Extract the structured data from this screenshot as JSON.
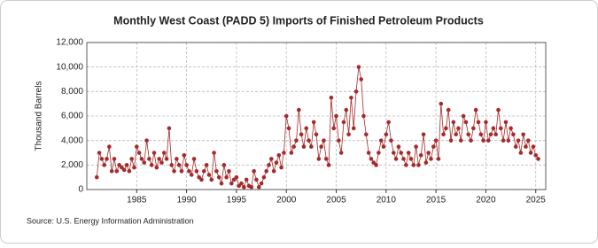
{
  "chart_data": {
    "type": "line",
    "title": "Monthly West Coast (PADD 5) Imports of Finished Petroleum Products",
    "y_label": "Thousand Barrels",
    "source": "Source: U.S. Energy Information Administration",
    "xlim": [
      1980,
      2026
    ],
    "xticks": [
      1985,
      1990,
      1995,
      2000,
      2005,
      2010,
      2015,
      2020,
      2025
    ],
    "ylim": [
      0,
      12000
    ],
    "yticks": [
      0,
      {
        "value": 2000,
        "label": "2,000"
      },
      {
        "value": 4000,
        "label": "4,000"
      },
      {
        "value": 6000,
        "label": "6,000"
      },
      {
        "value": 8000,
        "label": "8,000"
      },
      {
        "value": 10000,
        "label": "10,000"
      },
      {
        "value": 12000,
        "label": "12,000"
      }
    ],
    "grid": true,
    "series": [
      {
        "color": "#a52a2a",
        "x": [
          1981,
          1981.25,
          1981.5,
          1981.75,
          1982,
          1982.25,
          1982.5,
          1982.75,
          1983,
          1983.25,
          1983.5,
          1983.75,
          1984,
          1984.25,
          1984.5,
          1984.75,
          1985,
          1985.25,
          1985.5,
          1985.75,
          1986,
          1986.25,
          1986.5,
          1986.75,
          1987,
          1987.25,
          1987.5,
          1987.75,
          1988,
          1988.25,
          1988.5,
          1988.75,
          1989,
          1989.25,
          1989.5,
          1989.75,
          1990,
          1990.25,
          1990.5,
          1990.75,
          1991,
          1991.25,
          1991.5,
          1991.75,
          1992,
          1992.25,
          1992.5,
          1992.75,
          1993,
          1993.25,
          1993.5,
          1993.75,
          1994,
          1994.25,
          1994.5,
          1994.75,
          1995,
          1995.25,
          1995.5,
          1995.75,
          1996,
          1996.25,
          1996.5,
          1996.75,
          1997,
          1997.25,
          1997.5,
          1997.75,
          1998,
          1998.25,
          1998.5,
          1998.75,
          1999,
          1999.25,
          1999.5,
          1999.75,
          2000,
          2000.25,
          2000.5,
          2000.75,
          2001,
          2001.25,
          2001.5,
          2001.75,
          2002,
          2002.25,
          2002.5,
          2002.75,
          2003,
          2003.25,
          2003.5,
          2003.75,
          2004,
          2004.25,
          2004.5,
          2004.75,
          2005,
          2005.25,
          2005.5,
          2005.75,
          2006,
          2006.25,
          2006.5,
          2006.75,
          2007,
          2007.25,
          2007.5,
          2007.75,
          2008,
          2008.25,
          2008.5,
          2008.75,
          2009,
          2009.25,
          2009.5,
          2009.75,
          2010,
          2010.25,
          2010.5,
          2010.75,
          2011,
          2011.25,
          2011.5,
          2011.75,
          2012,
          2012.25,
          2012.5,
          2012.75,
          2013,
          2013.25,
          2013.5,
          2013.75,
          2014,
          2014.25,
          2014.5,
          2014.75,
          2015,
          2015.25,
          2015.5,
          2015.75,
          2016,
          2016.25,
          2016.5,
          2016.75,
          2017,
          2017.25,
          2017.5,
          2017.75,
          2018,
          2018.25,
          2018.5,
          2018.75,
          2019,
          2019.25,
          2019.5,
          2019.75,
          2020,
          2020.25,
          2020.5,
          2020.75,
          2021,
          2021.25,
          2021.5,
          2021.75,
          2022,
          2022.25,
          2022.5,
          2022.75,
          2023,
          2023.25,
          2023.5,
          2023.75,
          2024,
          2024.25,
          2024.5,
          2024.75,
          2025,
          2025.25
        ],
        "values": [
          1000,
          3000,
          2500,
          2000,
          2500,
          3500,
          1500,
          2500,
          1500,
          2000,
          1800,
          1600,
          2000,
          1500,
          2500,
          1800,
          3500,
          3000,
          2500,
          2200,
          4000,
          2500,
          2000,
          3000,
          1800,
          2500,
          2200,
          3000,
          2500,
          5000,
          2000,
          1500,
          2500,
          2000,
          1500,
          2800,
          2000,
          1500,
          1200,
          2500,
          1500,
          1000,
          800,
          1500,
          2000,
          1200,
          800,
          3000,
          1500,
          1000,
          500,
          2000,
          1000,
          1500,
          500,
          800,
          1000,
          300,
          500,
          200,
          800,
          300,
          200,
          1500,
          800,
          200,
          500,
          1000,
          1500,
          2000,
          2500,
          1500,
          2200,
          2800,
          1800,
          3000,
          6000,
          5000,
          3000,
          3500,
          4000,
          6500,
          4500,
          3500,
          5000,
          4000,
          3500,
          5500,
          4500,
          2500,
          3500,
          4000,
          2500,
          2000,
          7500,
          5000,
          6000,
          4000,
          3000,
          5500,
          6500,
          4500,
          7500,
          5000,
          8000,
          10000,
          9000,
          6000,
          4500,
          3000,
          2500,
          2200,
          2000,
          3000,
          4000,
          3500,
          4500,
          5500,
          4000,
          3000,
          2500,
          3500,
          3000,
          2500,
          2000,
          3000,
          2500,
          2000,
          3500,
          2000,
          2800,
          4500,
          2200,
          3000,
          2500,
          3500,
          4000,
          2500,
          7000,
          4500,
          5000,
          6500,
          4000,
          5500,
          4500,
          5000,
          4000,
          6000,
          5500,
          4500,
          4000,
          5000,
          6500,
          5500,
          4500,
          4000,
          5500,
          4000,
          4500,
          5000,
          4500,
          6500,
          5000,
          4000,
          5500,
          4000,
          5000,
          4500,
          3500,
          4000,
          3000,
          4500,
          3500,
          4000,
          3000,
          3500,
          2800,
          2500
        ]
      }
    ]
  }
}
